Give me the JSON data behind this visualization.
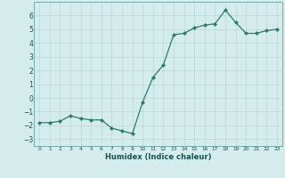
{
  "x": [
    0,
    1,
    2,
    3,
    4,
    5,
    6,
    7,
    8,
    9,
    10,
    11,
    12,
    13,
    14,
    15,
    16,
    17,
    18,
    19,
    20,
    21,
    22,
    23
  ],
  "y": [
    -1.8,
    -1.8,
    -1.7,
    -1.3,
    -1.5,
    -1.6,
    -1.6,
    -2.2,
    -2.4,
    -2.6,
    -0.3,
    1.5,
    2.4,
    4.6,
    4.7,
    5.1,
    5.3,
    5.4,
    6.4,
    5.5,
    4.7,
    4.7,
    4.9,
    5.0
  ],
  "xlabel": "Humidex (Indice chaleur)",
  "xlim": [
    -0.5,
    23.5
  ],
  "ylim": [
    -3.5,
    7.0
  ],
  "yticks": [
    -3,
    -2,
    -1,
    0,
    1,
    2,
    3,
    4,
    5,
    6
  ],
  "xticks": [
    0,
    1,
    2,
    3,
    4,
    5,
    6,
    7,
    8,
    9,
    10,
    11,
    12,
    13,
    14,
    15,
    16,
    17,
    18,
    19,
    20,
    21,
    22,
    23
  ],
  "line_color": "#2d7c6e",
  "bg_color": "#d4ecec",
  "grid_color": "#b8d8d8",
  "text_color": "#1a5050",
  "spine_color": "#7aacac"
}
